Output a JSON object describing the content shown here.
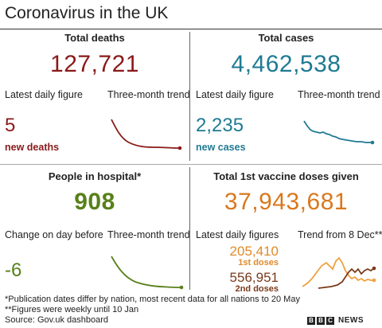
{
  "title": "Coronavirus in the UK",
  "panels": {
    "deaths": {
      "header": "Total deaths",
      "total": "127,721",
      "daily_label": "Latest daily figure",
      "trend_label": "Three-month trend",
      "daily_value": "5",
      "daily_sub": "new deaths",
      "color": "#8a1a1a"
    },
    "cases": {
      "header": "Total cases",
      "total": "4,462,538",
      "daily_label": "Latest daily figure",
      "trend_label": "Three-month trend",
      "daily_value": "2,235",
      "daily_sub": "new cases",
      "color": "#1f7a92"
    },
    "hospital": {
      "header": "People in hospital*",
      "total": "908",
      "daily_label": "Change on day before",
      "trend_label": "Three-month trend",
      "daily_value": "-6",
      "color": "#58801a"
    },
    "vaccine": {
      "header": "Total 1st vaccine doses given",
      "total": "37,943,681",
      "daily_label": "Latest daily figures",
      "trend_label": "Trend from 8 Dec**",
      "first_value": "205,410",
      "first_sub": "1st doses",
      "second_value": "556,951",
      "second_sub": "2nd doses",
      "first_color": "#f0a040",
      "second_color": "#7a3a1c",
      "total_color": "#d9781c"
    }
  },
  "footnotes": [
    "*Publication dates differ by nation, most recent data for all nations to 20 May",
    "**Figures were weekly until 10 Jan",
    "Source: Gov.uk dashboard"
  ],
  "brand": {
    "blocks": [
      "B",
      "B",
      "C"
    ],
    "name": "NEWS"
  }
}
